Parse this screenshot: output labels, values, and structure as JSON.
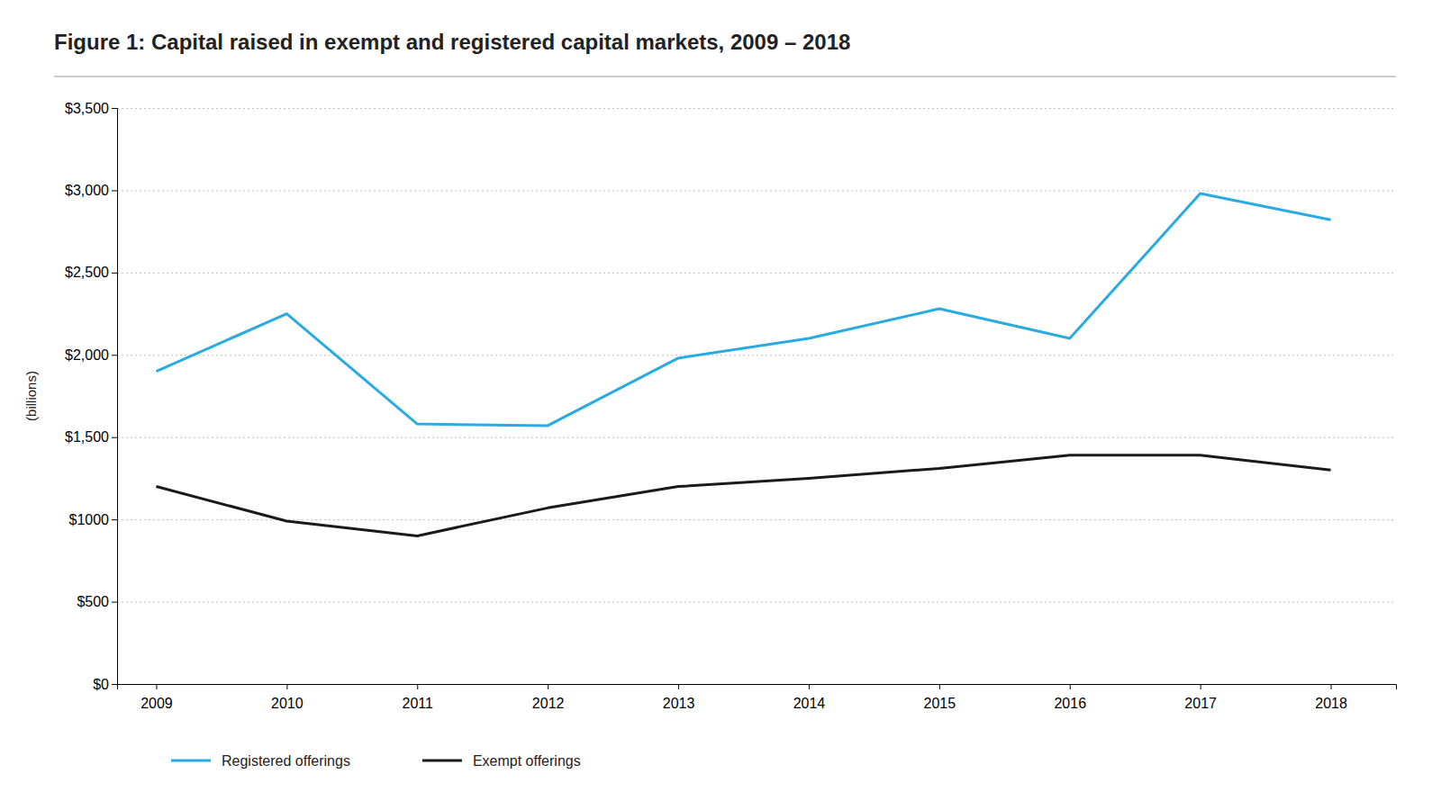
{
  "chart_data": {
    "type": "line",
    "title": "Figure 1: Capital raised in exempt and registered capital markets, 2009 – 2018",
    "ylabel": "(billions)",
    "x": [
      2009,
      2010,
      2011,
      2012,
      2013,
      2014,
      2015,
      2016,
      2017,
      2018
    ],
    "series": [
      {
        "name": "Registered offerings",
        "color": "#29ABE2",
        "values": [
          1900,
          2250,
          1580,
          1570,
          1980,
          2100,
          2280,
          2100,
          2980,
          2820
        ]
      },
      {
        "name": "Exempt offerings",
        "color": "#1a1a1a",
        "values": [
          1200,
          990,
          900,
          1070,
          1200,
          1250,
          1310,
          1390,
          1390,
          1300
        ]
      }
    ],
    "xlim": [
      2008.7,
      2018.5
    ],
    "xticks": [
      2009,
      2010,
      2011,
      2012,
      2013,
      2014,
      2015,
      2016,
      2017,
      2018
    ],
    "ylim": [
      0,
      3500
    ],
    "yticks": [
      {
        "value": 0,
        "label": "$0"
      },
      {
        "value": 500,
        "label": "$500"
      },
      {
        "value": 1000,
        "label": "$1000"
      },
      {
        "value": 1500,
        "label": "$1,500"
      },
      {
        "value": 2000,
        "label": "$2,000"
      },
      {
        "value": 2500,
        "label": "$2,500"
      },
      {
        "value": 3000,
        "label": "$3,000"
      },
      {
        "value": 3500,
        "label": "$3,500"
      }
    ],
    "grid": true,
    "legend": "bottom"
  }
}
